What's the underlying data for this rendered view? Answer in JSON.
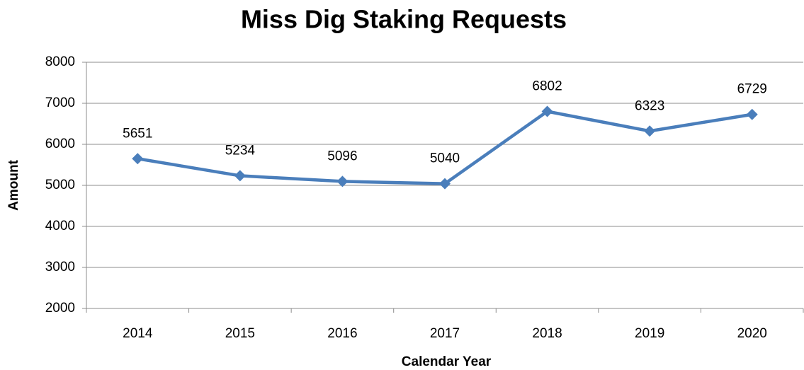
{
  "chart_data": {
    "type": "line",
    "title": "Miss Dig Staking Requests",
    "x_label": "Calendar Year",
    "y_label": "Amount",
    "categories": [
      "2014",
      "2015",
      "2016",
      "2017",
      "2018",
      "2019",
      "2020"
    ],
    "series": [
      {
        "name": "Amount",
        "color": "#4a7ebb",
        "values": [
          5651,
          5234,
          5096,
          5040,
          6802,
          6323,
          6729
        ]
      }
    ],
    "ylim": [
      2000,
      8000
    ],
    "yticks": [
      2000,
      3000,
      4000,
      5000,
      6000,
      7000,
      8000
    ],
    "grid": true,
    "data_labels": true,
    "legend": false
  }
}
